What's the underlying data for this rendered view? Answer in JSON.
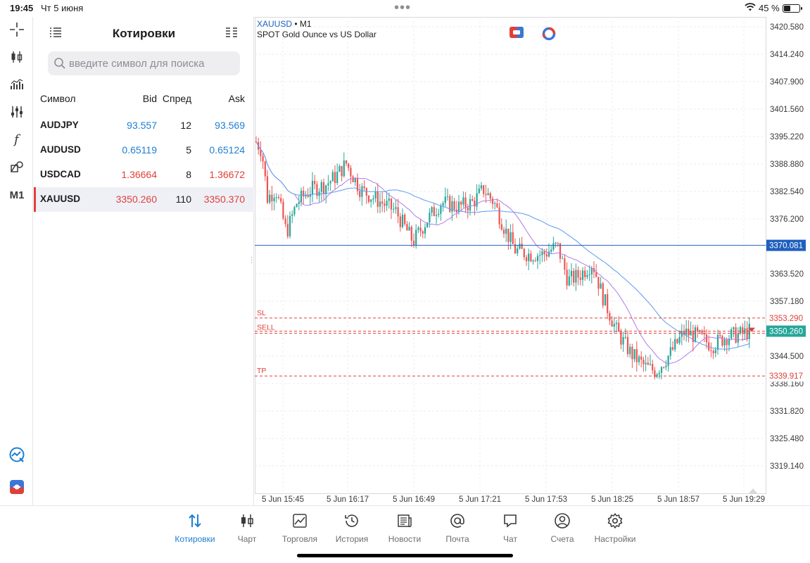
{
  "status_bar": {
    "time": "19:45",
    "date": "Чт 5 июня",
    "battery_text": "45 %",
    "battery_level": 0.45
  },
  "quotes": {
    "title": "Котировки",
    "search_placeholder": "введите символ для поиска",
    "columns": {
      "symbol": "Символ",
      "bid": "Bid",
      "spread": "Спред",
      "ask": "Ask"
    },
    "rows": [
      {
        "symbol": "AUDJPY",
        "bid": "93.557",
        "spread": "12",
        "ask": "93.569",
        "color": "blue",
        "selected": false
      },
      {
        "symbol": "AUDUSD",
        "bid": "0.65119",
        "spread": "5",
        "ask": "0.65124",
        "color": "blue",
        "selected": false
      },
      {
        "symbol": "USDCAD",
        "bid": "1.36664",
        "spread": "8",
        "ask": "1.36672",
        "color": "red",
        "selected": false
      },
      {
        "symbol": "XAUUSD",
        "bid": "3350.260",
        "spread": "110",
        "ask": "3350.370",
        "color": "red",
        "selected": true
      }
    ]
  },
  "left_toolbar": {
    "timeframe": "M1"
  },
  "chart": {
    "symbol": "XAUUSD",
    "separator": "•",
    "timeframe": "M1",
    "description": "SPOT Gold Ounce vs US Dollar",
    "y_ticks": [
      "3420.580",
      "3414.240",
      "3407.900",
      "3401.560",
      "3395.220",
      "3388.880",
      "3382.540",
      "3376.200",
      "3363.520",
      "3357.180",
      "3344.500",
      "3338.160",
      "3331.820",
      "3325.480",
      "3319.140"
    ],
    "x_ticks": [
      "5 Jun 15:45",
      "5 Jun 16:17",
      "5 Jun 16:49",
      "5 Jun 17:21",
      "5 Jun 17:53",
      "5 Jun 18:25",
      "5 Jun 18:57",
      "5 Jun 19:29"
    ],
    "level_lines": [
      {
        "label": "",
        "price_label": "3370.081",
        "price": 3370.081,
        "kind": "hline"
      },
      {
        "label": "SL",
        "price_label": "3353.290",
        "price": 3353.29,
        "kind": "sl"
      },
      {
        "label": "SELL",
        "price_label": "3350.260",
        "price": 3350.26,
        "kind": "sell"
      },
      {
        "label": "TP",
        "price_label": "3339.917",
        "price": 3339.917,
        "kind": "tp"
      }
    ],
    "colors": {
      "bull": "#26a69a",
      "bear": "#ef5350",
      "ma_fast": "#b07be6",
      "ma_slow": "#5b9bf0",
      "hline": "#1f5fbf",
      "sltp": "#e0403a"
    }
  },
  "bottom_nav": [
    {
      "label": "Котировки",
      "icon": "arrows-updown-icon",
      "active": true
    },
    {
      "label": "Чарт",
      "icon": "candles-icon",
      "active": false
    },
    {
      "label": "Торговля",
      "icon": "trade-chart-icon",
      "active": false
    },
    {
      "label": "История",
      "icon": "history-icon",
      "active": false
    },
    {
      "label": "Новости",
      "icon": "news-icon",
      "active": false
    },
    {
      "label": "Почта",
      "icon": "mail-at-icon",
      "active": false
    },
    {
      "label": "Чат",
      "icon": "chat-icon",
      "active": false
    },
    {
      "label": "Счета",
      "icon": "account-icon",
      "active": false
    },
    {
      "label": "Настройки",
      "icon": "settings-gear-icon",
      "active": false
    }
  ]
}
